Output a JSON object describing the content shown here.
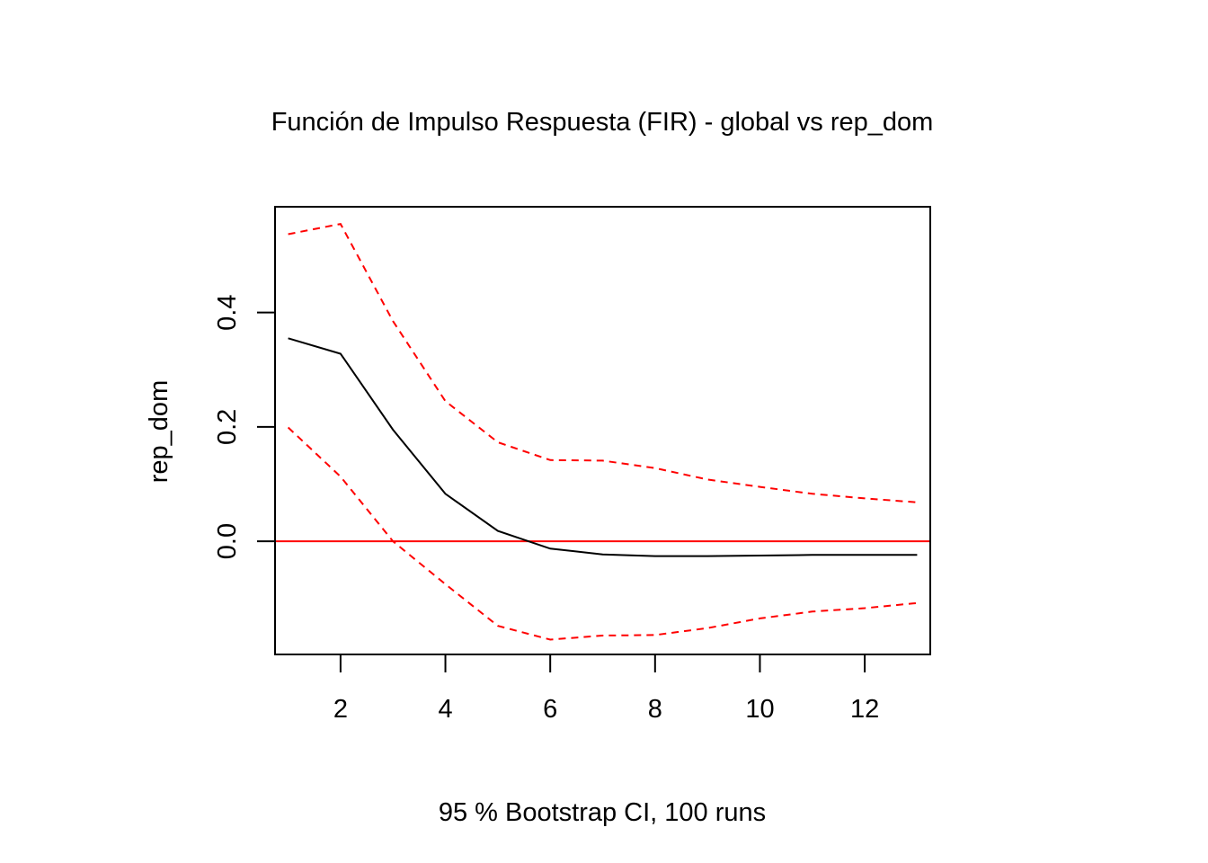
{
  "chart_data": {
    "type": "line",
    "title": "Función de Impulso Respuesta (FIR) - global vs rep_dom",
    "xlabel": "95 % Bootstrap CI,  100 runs",
    "ylabel": "rep_dom",
    "xlim": [
      0.75,
      13.25
    ],
    "ylim": [
      -0.198,
      0.585
    ],
    "x_ticks": [
      2,
      4,
      6,
      8,
      10,
      12
    ],
    "y_ticks": [
      0.0,
      0.2,
      0.4
    ],
    "x_tick_labels": [
      "2",
      "4",
      "6",
      "8",
      "10",
      "12"
    ],
    "y_tick_labels": [
      "0.0",
      "0.2",
      "0.4"
    ],
    "x": [
      1,
      2,
      3,
      4,
      5,
      6,
      7,
      8,
      9,
      10,
      11,
      12,
      13
    ],
    "series": [
      {
        "role": "irf",
        "color": "#000000",
        "dash": "solid",
        "values": [
          0.355,
          0.328,
          0.195,
          0.083,
          0.018,
          -0.013,
          -0.023,
          -0.026,
          -0.026,
          -0.025,
          -0.024,
          -0.024,
          -0.024
        ]
      },
      {
        "role": "upper",
        "color": "#ff0000",
        "dash": "dashed",
        "values": [
          0.537,
          0.555,
          0.385,
          0.245,
          0.173,
          0.142,
          0.141,
          0.128,
          0.108,
          0.095,
          0.083,
          0.075,
          0.068
        ]
      },
      {
        "role": "lower",
        "color": "#ff0000",
        "dash": "dashed",
        "values": [
          0.199,
          0.113,
          0.0,
          -0.075,
          -0.148,
          -0.172,
          -0.165,
          -0.164,
          -0.152,
          -0.135,
          -0.123,
          -0.117,
          -0.108
        ]
      }
    ],
    "reference_line": {
      "y": 0.0,
      "color": "#ff0000"
    },
    "grid": false,
    "legend": "none"
  }
}
